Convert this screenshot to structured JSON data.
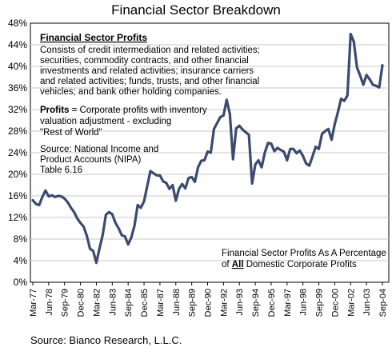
{
  "chart_data": {
    "type": "line",
    "title": "Financial Sector Breakdown",
    "ylim": [
      0,
      48
    ],
    "yticks": [
      0,
      4,
      8,
      12,
      16,
      20,
      24,
      28,
      32,
      36,
      40,
      44,
      48
    ],
    "ytick_labels": [
      "0%",
      "4%",
      "8%",
      "12%",
      "16%",
      "20%",
      "24%",
      "28%",
      "32%",
      "36%",
      "40%",
      "44%",
      "48%"
    ],
    "xticks": [
      {
        "label": "Mar-77",
        "q": 0
      },
      {
        "label": "Jun-78",
        "q": 5
      },
      {
        "label": "Sep-79",
        "q": 10
      },
      {
        "label": "Dec-80",
        "q": 15
      },
      {
        "label": "Mar-82",
        "q": 20
      },
      {
        "label": "Jun-83",
        "q": 25
      },
      {
        "label": "Sep-84",
        "q": 30
      },
      {
        "label": "Dec-85",
        "q": 35
      },
      {
        "label": "Mar-87",
        "q": 40
      },
      {
        "label": "Jun-88",
        "q": 45
      },
      {
        "label": "Sep-89",
        "q": 50
      },
      {
        "label": "Dec-90",
        "q": 55
      },
      {
        "label": "Mar-92",
        "q": 60
      },
      {
        "label": "Jun-93",
        "q": 65
      },
      {
        "label": "Sep-94",
        "q": 70
      },
      {
        "label": "Dec-95",
        "q": 75
      },
      {
        "label": "Mar-97",
        "q": 80
      },
      {
        "label": "Jun-98",
        "q": 85
      },
      {
        "label": "Sep-99",
        "q": 90
      },
      {
        "label": "Dec-00",
        "q": 95
      },
      {
        "label": "Mar-02",
        "q": 100
      },
      {
        "label": "Jun-03",
        "q": 105
      },
      {
        "label": "Sep-04",
        "q": 110
      }
    ],
    "grid": true,
    "series": [
      {
        "color": "#3a4a70",
        "values": [
          [
            0,
            15.2
          ],
          [
            1,
            14.5
          ],
          [
            2,
            14.3
          ],
          [
            3,
            15.8
          ],
          [
            4,
            17.0
          ],
          [
            5,
            15.9
          ],
          [
            6,
            16.1
          ],
          [
            7,
            15.8
          ],
          [
            8,
            16.0
          ],
          [
            9,
            15.9
          ],
          [
            10,
            15.5
          ],
          [
            11,
            14.8
          ],
          [
            12,
            13.8
          ],
          [
            13,
            13.0
          ],
          [
            14,
            11.8
          ],
          [
            15,
            11.0
          ],
          [
            16,
            10.3
          ],
          [
            17,
            8.6
          ],
          [
            18,
            6.2
          ],
          [
            19,
            5.8
          ],
          [
            20,
            3.6
          ],
          [
            21,
            6.3
          ],
          [
            22,
            8.8
          ],
          [
            23,
            12.5
          ],
          [
            24,
            13.0
          ],
          [
            25,
            12.6
          ],
          [
            26,
            11.0
          ],
          [
            27,
            10.0
          ],
          [
            28,
            8.7
          ],
          [
            29,
            8.5
          ],
          [
            30,
            7.0
          ],
          [
            31,
            8.3
          ],
          [
            32,
            10.5
          ],
          [
            33,
            14.3
          ],
          [
            34,
            13.8
          ],
          [
            35,
            15.0
          ],
          [
            36,
            17.8
          ],
          [
            37,
            20.6
          ],
          [
            38,
            20.2
          ],
          [
            39,
            19.8
          ],
          [
            40,
            19.8
          ],
          [
            41,
            18.7
          ],
          [
            42,
            18.4
          ],
          [
            43,
            17.3
          ],
          [
            44,
            18.0
          ],
          [
            45,
            15.1
          ],
          [
            46,
            17.3
          ],
          [
            47,
            18.2
          ],
          [
            48,
            17.4
          ],
          [
            49,
            19.3
          ],
          [
            50,
            19.5
          ],
          [
            51,
            18.6
          ],
          [
            52,
            21.3
          ],
          [
            53,
            22.5
          ],
          [
            54,
            22.6
          ],
          [
            55,
            24.2
          ],
          [
            56,
            24.0
          ],
          [
            57,
            28.4
          ],
          [
            58,
            29.5
          ],
          [
            59,
            30.6
          ],
          [
            60,
            30.9
          ],
          [
            61,
            33.8
          ],
          [
            62,
            31.2
          ],
          [
            63,
            22.8
          ],
          [
            64,
            28.5
          ],
          [
            65,
            29.0
          ],
          [
            66,
            28.3
          ],
          [
            67,
            27.8
          ],
          [
            68,
            27.3
          ],
          [
            69,
            18.3
          ],
          [
            70,
            21.8
          ],
          [
            71,
            22.6
          ],
          [
            72,
            21.3
          ],
          [
            73,
            24.0
          ],
          [
            74,
            25.8
          ],
          [
            75,
            25.7
          ],
          [
            76,
            24.3
          ],
          [
            77,
            24.9
          ],
          [
            78,
            24.5
          ],
          [
            79,
            24.2
          ],
          [
            80,
            22.6
          ],
          [
            81,
            24.7
          ],
          [
            82,
            24.7
          ],
          [
            83,
            23.9
          ],
          [
            84,
            24.4
          ],
          [
            85,
            23.4
          ],
          [
            86,
            22.0
          ],
          [
            87,
            21.6
          ],
          [
            88,
            23.3
          ],
          [
            89,
            25.1
          ],
          [
            90,
            24.7
          ],
          [
            91,
            27.5
          ],
          [
            92,
            28.0
          ],
          [
            93,
            28.4
          ],
          [
            94,
            26.4
          ],
          [
            95,
            29.3
          ],
          [
            96,
            31.5
          ],
          [
            97,
            34.0
          ],
          [
            98,
            33.6
          ],
          [
            99,
            34.6
          ],
          [
            100,
            46.0
          ],
          [
            101,
            44.6
          ],
          [
            102,
            39.8
          ],
          [
            103,
            38.3
          ],
          [
            104,
            36.6
          ],
          [
            105,
            38.4
          ],
          [
            106,
            37.6
          ],
          [
            107,
            36.6
          ],
          [
            108,
            36.4
          ],
          [
            109,
            36.1
          ],
          [
            110,
            40.2
          ]
        ]
      }
    ],
    "annotations": {
      "box_heading": "Financial Sector Profits",
      "box_lines": [
        "Consists of credit intermediation and related activities;",
        "securities, commodity contracts, and other financial",
        "investments and related activities; insurance carriers",
        "and related activities; funds, trusts, and other financial",
        "vehicles; and bank other holding companies."
      ],
      "profits_term": "Profits",
      "profits_lines": [
        " = Corporate profits with inventory",
        "valuation adjustment - excluding",
        "\"Rest of World\""
      ],
      "source_lines": [
        "Source: National Income and",
        "Product Accounts (NIPA)",
        "Table 6.16"
      ],
      "caption_line1": "Financial Sector Profits As A Percentage",
      "caption_line2_pre": "of ",
      "caption_line2_bold": "All",
      "caption_line2_post": " Domestic Corporate Profits"
    }
  },
  "footer": {
    "source": "Source: Bianco Research, L.L.C."
  }
}
